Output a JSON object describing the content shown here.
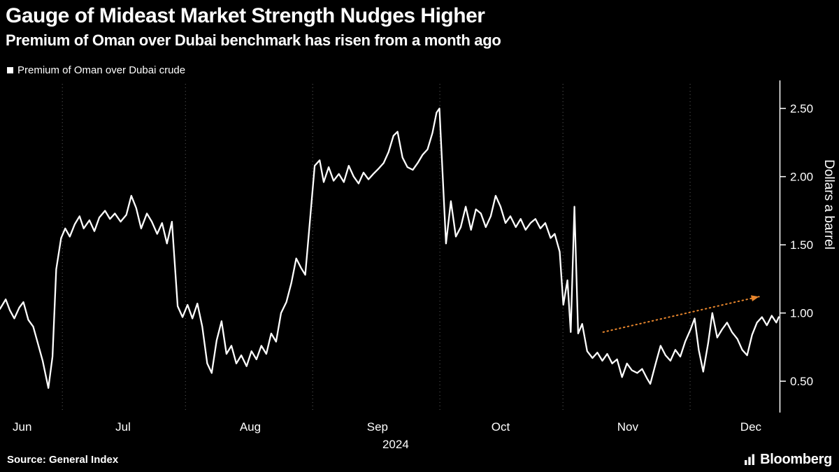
{
  "header": {
    "title": "Gauge of Mideast Market Strength Nudges Higher",
    "subtitle": "Premium of Oman over Dubai benchmark has risen from a month ago"
  },
  "legend": {
    "label": "Premium of Oman over Dubai crude",
    "marker_color": "#ffffff"
  },
  "footer": {
    "source": "Source: General Index",
    "brand": "Bloomberg"
  },
  "colors": {
    "background": "#000000",
    "text": "#ffffff",
    "series_line": "#ffffff",
    "grid": "#5f5f5f",
    "axis": "#ffffff",
    "trend": "#e8862d"
  },
  "chart_data": {
    "type": "line",
    "title": "Gauge of Mideast Market Strength Nudges Higher",
    "subtitle": "Premium of Oman over Dubai benchmark has risen from a month ago",
    "xlabel": "",
    "ylabel": "Dollars a barrel",
    "x_unit": "days since Jun 1 2024",
    "xlim": [
      0,
      190
    ],
    "ylim": [
      0.27,
      2.68
    ],
    "grid": "vertical-dotted",
    "legend_position": "top-left",
    "xticks": [
      {
        "day": 0,
        "label": "Jun"
      },
      {
        "day": 30,
        "label": "Jul"
      },
      {
        "day": 61,
        "label": "Aug"
      },
      {
        "day": 92,
        "label": "Sep"
      },
      {
        "day": 122,
        "label": "Oct"
      },
      {
        "day": 153,
        "label": "Nov"
      },
      {
        "day": 183,
        "label": "Dec"
      }
    ],
    "year_label": {
      "day": 92,
      "label": "2024"
    },
    "yticks": [
      {
        "value": 0.5,
        "label": "0.50"
      },
      {
        "value": 1.0,
        "label": "1.00"
      },
      {
        "value": 1.5,
        "label": "1.50"
      },
      {
        "value": 2.0,
        "label": "2.00"
      },
      {
        "value": 2.5,
        "label": "2.50"
      }
    ],
    "series": [
      {
        "name": "Premium of Oman over Dubai crude",
        "color": "#ffffff",
        "points": [
          [
            0.0,
            1.03
          ],
          [
            1.4,
            1.1
          ],
          [
            2.4,
            1.02
          ],
          [
            3.5,
            0.96
          ],
          [
            4.7,
            1.04
          ],
          [
            5.7,
            1.08
          ],
          [
            6.9,
            0.95
          ],
          [
            8.1,
            0.9
          ],
          [
            9.2,
            0.78
          ],
          [
            10.4,
            0.65
          ],
          [
            11.8,
            0.45
          ],
          [
            12.8,
            0.68
          ],
          [
            13.7,
            1.32
          ],
          [
            14.9,
            1.55
          ],
          [
            15.9,
            1.62
          ],
          [
            17.0,
            1.56
          ],
          [
            18.2,
            1.65
          ],
          [
            19.4,
            1.71
          ],
          [
            20.4,
            1.62
          ],
          [
            21.8,
            1.68
          ],
          [
            23.0,
            1.6
          ],
          [
            24.2,
            1.7
          ],
          [
            25.6,
            1.75
          ],
          [
            26.8,
            1.69
          ],
          [
            28.0,
            1.73
          ],
          [
            29.4,
            1.67
          ],
          [
            30.8,
            1.72
          ],
          [
            32.0,
            1.86
          ],
          [
            33.2,
            1.77
          ],
          [
            34.4,
            1.62
          ],
          [
            35.8,
            1.73
          ],
          [
            37.0,
            1.67
          ],
          [
            38.3,
            1.58
          ],
          [
            39.5,
            1.66
          ],
          [
            40.7,
            1.51
          ],
          [
            41.9,
            1.67
          ],
          [
            43.3,
            1.05
          ],
          [
            44.5,
            0.97
          ],
          [
            45.7,
            1.06
          ],
          [
            46.9,
            0.96
          ],
          [
            48.1,
            1.07
          ],
          [
            49.3,
            0.9
          ],
          [
            50.5,
            0.63
          ],
          [
            51.6,
            0.56
          ],
          [
            52.8,
            0.8
          ],
          [
            54.0,
            0.94
          ],
          [
            55.2,
            0.7
          ],
          [
            56.4,
            0.76
          ],
          [
            57.6,
            0.63
          ],
          [
            58.8,
            0.69
          ],
          [
            60.1,
            0.61
          ],
          [
            61.3,
            0.72
          ],
          [
            62.5,
            0.66
          ],
          [
            63.7,
            0.76
          ],
          [
            64.9,
            0.7
          ],
          [
            66.1,
            0.85
          ],
          [
            67.3,
            0.79
          ],
          [
            68.5,
            1.0
          ],
          [
            69.8,
            1.08
          ],
          [
            71.0,
            1.22
          ],
          [
            72.2,
            1.4
          ],
          [
            73.4,
            1.33
          ],
          [
            74.4,
            1.28
          ],
          [
            75.6,
            1.7
          ],
          [
            76.7,
            2.08
          ],
          [
            77.9,
            2.12
          ],
          [
            78.9,
            1.96
          ],
          [
            80.1,
            2.07
          ],
          [
            81.3,
            1.97
          ],
          [
            82.6,
            2.02
          ],
          [
            83.8,
            1.96
          ],
          [
            85.0,
            2.08
          ],
          [
            86.2,
            2.0
          ],
          [
            87.4,
            1.95
          ],
          [
            88.6,
            2.03
          ],
          [
            89.8,
            1.98
          ],
          [
            91.0,
            2.02
          ],
          [
            92.3,
            2.06
          ],
          [
            93.5,
            2.1
          ],
          [
            94.7,
            2.18
          ],
          [
            95.9,
            2.3
          ],
          [
            96.9,
            2.33
          ],
          [
            98.1,
            2.14
          ],
          [
            99.3,
            2.07
          ],
          [
            100.6,
            2.05
          ],
          [
            101.8,
            2.1
          ],
          [
            103.0,
            2.16
          ],
          [
            104.2,
            2.2
          ],
          [
            105.4,
            2.32
          ],
          [
            106.4,
            2.47
          ],
          [
            107.1,
            2.5
          ],
          [
            108.7,
            1.51
          ],
          [
            109.9,
            1.82
          ],
          [
            111.1,
            1.56
          ],
          [
            112.3,
            1.63
          ],
          [
            113.5,
            1.78
          ],
          [
            114.8,
            1.61
          ],
          [
            116.0,
            1.76
          ],
          [
            117.2,
            1.73
          ],
          [
            118.4,
            1.63
          ],
          [
            119.6,
            1.71
          ],
          [
            120.8,
            1.86
          ],
          [
            122.0,
            1.78
          ],
          [
            123.2,
            1.66
          ],
          [
            124.4,
            1.71
          ],
          [
            125.7,
            1.63
          ],
          [
            126.9,
            1.69
          ],
          [
            128.1,
            1.61
          ],
          [
            129.3,
            1.66
          ],
          [
            130.5,
            1.69
          ],
          [
            131.7,
            1.62
          ],
          [
            132.9,
            1.66
          ],
          [
            134.2,
            1.55
          ],
          [
            135.2,
            1.58
          ],
          [
            136.4,
            1.45
          ],
          [
            137.3,
            1.06
          ],
          [
            138.3,
            1.24
          ],
          [
            139.1,
            0.86
          ],
          [
            140.0,
            1.78
          ],
          [
            140.9,
            0.85
          ],
          [
            141.9,
            0.92
          ],
          [
            143.1,
            0.72
          ],
          [
            144.4,
            0.67
          ],
          [
            145.6,
            0.71
          ],
          [
            146.8,
            0.65
          ],
          [
            148.0,
            0.7
          ],
          [
            149.2,
            0.63
          ],
          [
            150.4,
            0.66
          ],
          [
            151.6,
            0.53
          ],
          [
            152.8,
            0.63
          ],
          [
            154.0,
            0.58
          ],
          [
            155.3,
            0.56
          ],
          [
            156.5,
            0.59
          ],
          [
            157.7,
            0.52
          ],
          [
            158.5,
            0.48
          ],
          [
            159.8,
            0.63
          ],
          [
            161.0,
            0.76
          ],
          [
            162.2,
            0.69
          ],
          [
            163.4,
            0.65
          ],
          [
            164.6,
            0.73
          ],
          [
            165.8,
            0.68
          ],
          [
            167.0,
            0.79
          ],
          [
            168.3,
            0.88
          ],
          [
            169.3,
            0.96
          ],
          [
            170.3,
            0.73
          ],
          [
            171.4,
            0.57
          ],
          [
            172.6,
            0.78
          ],
          [
            173.6,
            1.0
          ],
          [
            174.8,
            0.82
          ],
          [
            176.0,
            0.88
          ],
          [
            177.2,
            0.93
          ],
          [
            178.4,
            0.86
          ],
          [
            179.7,
            0.81
          ],
          [
            180.9,
            0.73
          ],
          [
            182.1,
            0.69
          ],
          [
            183.3,
            0.84
          ],
          [
            184.5,
            0.93
          ],
          [
            185.7,
            0.97
          ],
          [
            186.9,
            0.91
          ],
          [
            188.1,
            0.98
          ],
          [
            189.2,
            0.93
          ],
          [
            189.8,
            0.97
          ]
        ]
      }
    ],
    "trend_annotation": {
      "style": "dotted-arrow",
      "color": "#e8862d",
      "from": [
        147,
        0.86
      ],
      "to": [
        185,
        1.12
      ]
    }
  }
}
